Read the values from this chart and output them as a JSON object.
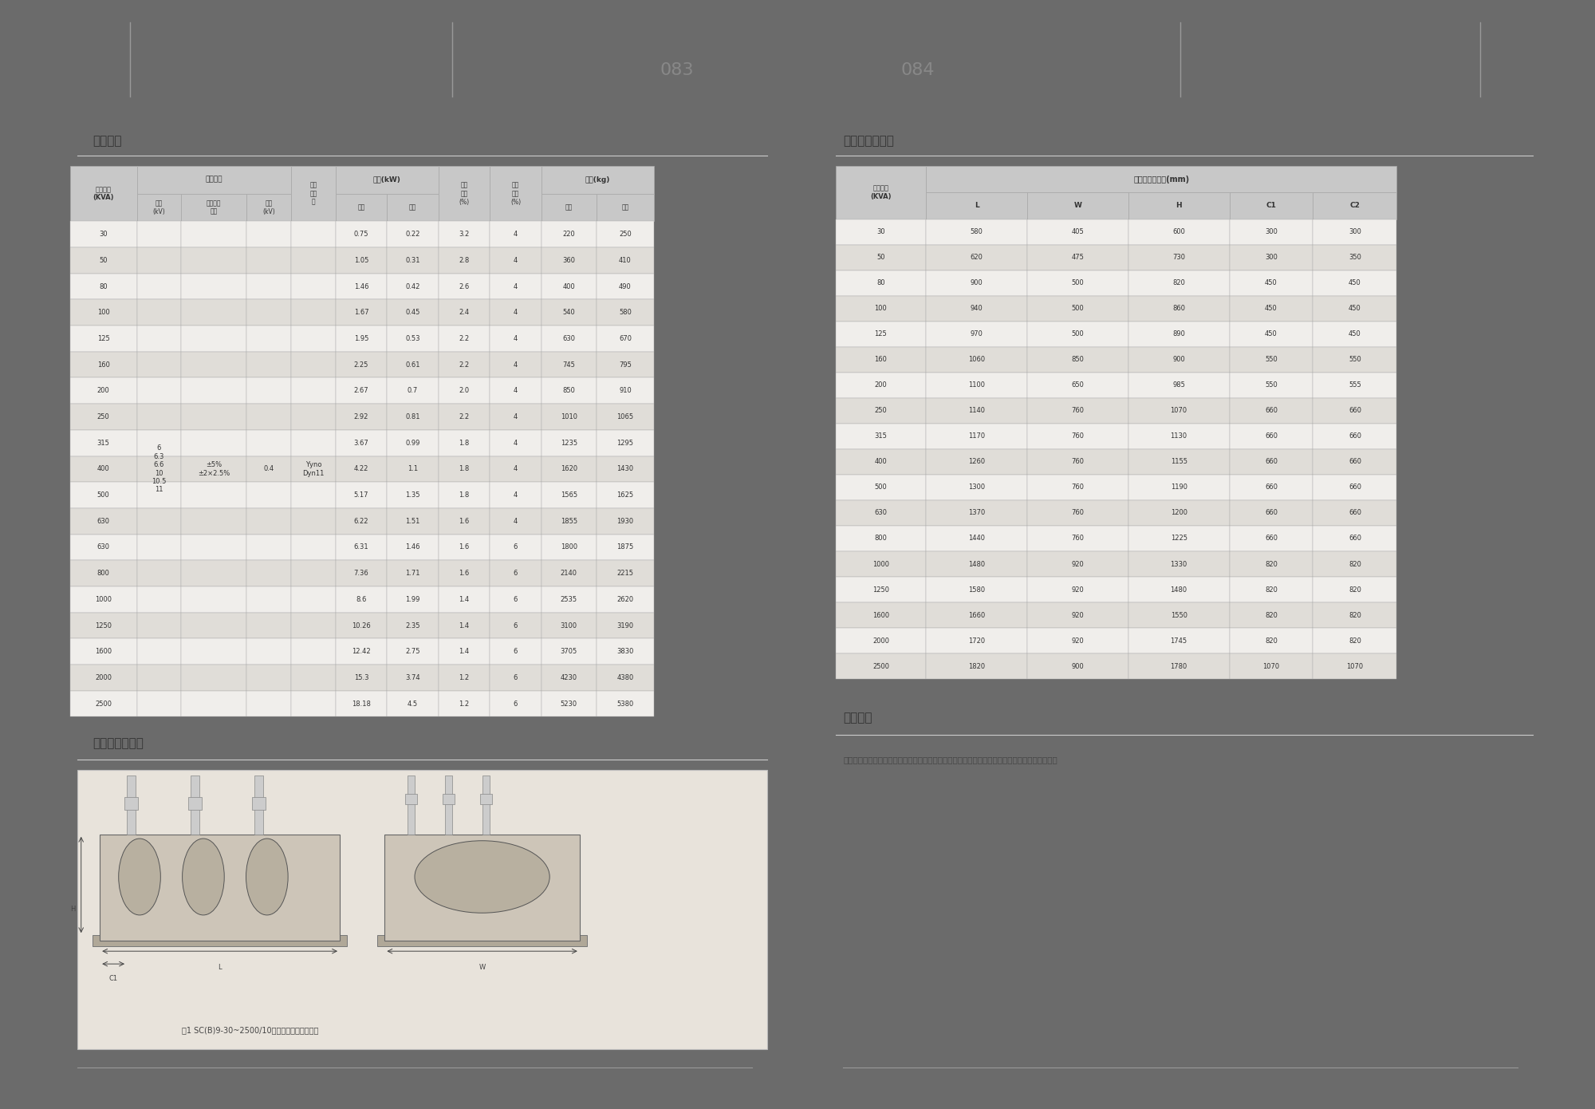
{
  "page_bg": "#6b6b6b",
  "content_bg": "#ffffff",
  "page_num_left": "083",
  "page_num_right": "084",
  "table_header_bg": "#c8c8c8",
  "table_row_light": "#f0eeeb",
  "table_row_dark": "#e0ddd8",
  "table_border": "#aaaaaa",
  "left_table_title": "技术参数",
  "left_dim_title": "外型及安装尺寸",
  "section_title_right1": "外型及安装尺寸",
  "kva_values": [
    30,
    50,
    80,
    100,
    125,
    160,
    200,
    250,
    315,
    400,
    500,
    630,
    630,
    800,
    1000,
    1250,
    1600,
    2000,
    2500
  ],
  "load_loss": [
    0.75,
    1.05,
    1.46,
    1.67,
    1.95,
    2.25,
    2.67,
    2.92,
    3.67,
    4.22,
    5.17,
    6.22,
    6.31,
    7.36,
    8.6,
    10.26,
    12.42,
    15.3,
    18.18
  ],
  "no_load_loss": [
    0.22,
    0.31,
    0.42,
    0.45,
    0.53,
    0.61,
    0.7,
    0.81,
    0.99,
    1.1,
    1.35,
    1.51,
    1.46,
    1.71,
    1.99,
    2.35,
    2.75,
    3.74,
    4.5
  ],
  "load_voltage": [
    3.2,
    2.8,
    2.6,
    2.4,
    2.2,
    2.2,
    2.0,
    2.2,
    1.8,
    1.8,
    1.8,
    1.6,
    1.6,
    1.6,
    1.4,
    1.4,
    1.4,
    1.2,
    1.2
  ],
  "short_circuit": [
    4,
    4,
    4,
    4,
    4,
    4,
    4,
    4,
    4,
    4,
    4,
    4,
    6,
    6,
    6,
    6,
    6,
    6,
    6
  ],
  "oil_weight": [
    220,
    360,
    400,
    540,
    630,
    745,
    850,
    1010,
    1235,
    1620,
    1565,
    1855,
    1800,
    2140,
    2535,
    3100,
    3705,
    4230,
    5230
  ],
  "total_weight": [
    250,
    410,
    490,
    580,
    670,
    795,
    910,
    1065,
    1295,
    1430,
    1625,
    1930,
    1875,
    2215,
    2620,
    3190,
    3830,
    4380,
    5380
  ],
  "right_kva": [
    30,
    50,
    80,
    100,
    125,
    160,
    200,
    250,
    315,
    400,
    500,
    630,
    800,
    1000,
    1250,
    1600,
    2000,
    2500
  ],
  "right_L": [
    580,
    620,
    900,
    940,
    970,
    1060,
    1100,
    1140,
    1170,
    1260,
    1300,
    1370,
    1440,
    1480,
    1580,
    1660,
    1720,
    1820
  ],
  "right_W": [
    405,
    475,
    500,
    500,
    500,
    850,
    650,
    760,
    760,
    760,
    760,
    760,
    760,
    920,
    920,
    920,
    920,
    900
  ],
  "right_H": [
    600,
    730,
    820,
    860,
    890,
    900,
    985,
    1070,
    1130,
    1155,
    1190,
    1200,
    1225,
    1330,
    1480,
    1550,
    1745,
    1780
  ],
  "right_C1": [
    300,
    300,
    450,
    450,
    450,
    550,
    550,
    660,
    660,
    660,
    660,
    660,
    660,
    820,
    820,
    820,
    820,
    1070
  ],
  "right_C2": [
    300,
    350,
    450,
    450,
    450,
    550,
    555,
    660,
    660,
    660,
    660,
    660,
    660,
    820,
    820,
    820,
    820,
    1070
  ],
  "order_note": "订货须知",
  "order_text": "订货时应提供产品型号、额定容量、高低压额定电压及高压分接范围、相数、频率、联结组标号。"
}
